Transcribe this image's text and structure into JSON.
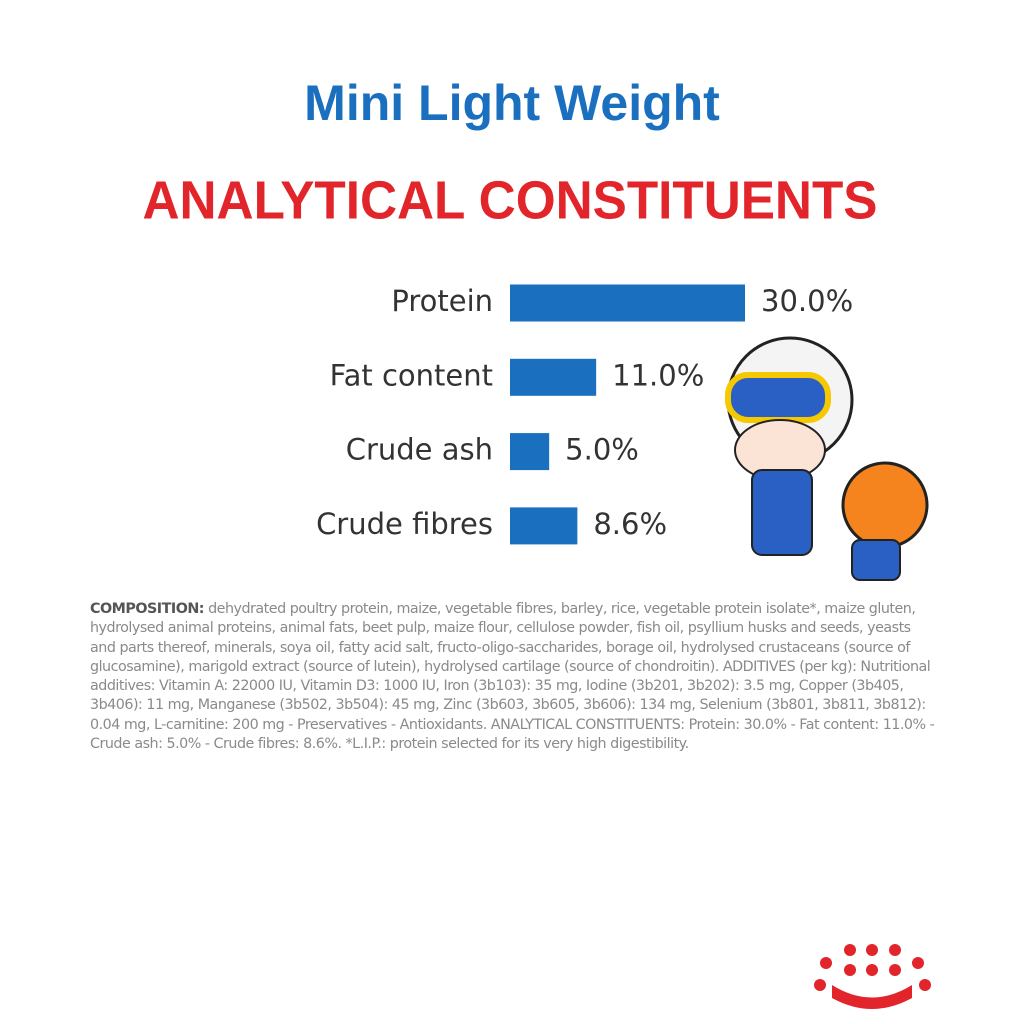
{
  "chart_data": {
    "type": "bar",
    "orientation": "horizontal",
    "title": "Mini Light Weight",
    "subtitle": "ANALYTICAL CONSTITUENTS",
    "categories": [
      "Protein",
      "Fat content",
      "Crude ash",
      "Crude fibres"
    ],
    "values": [
      30.0,
      11.0,
      5.0,
      8.6
    ],
    "value_labels": [
      "30.0%",
      "11.0%",
      "5.0%",
      "8.6%"
    ],
    "color": "#1b6fbf"
  },
  "composition": {
    "label": "COMPOSITION:",
    "text": "dehydrated poultry protein, maize, vegetable fibres, barley, rice, vegetable protein isolate*, maize gluten, hydrolysed animal proteins, animal fats, beet pulp, maize flour, cellulose powder, fish oil, psyllium husks and seeds, yeasts and parts thereof, minerals, soya oil, fatty acid salt, fructo-oligo-saccharides, borage oil, hydrolysed crustaceans (source of glucosamine), marigold extract (source of lutein), hydrolysed cartilage (source of chondroitin). ADDITIVES (per kg): Nutritional additives: Vitamin A: 22000 IU, Vitamin D3: 1000 IU, Iron (3b103): 35 mg, Iodine (3b201, 3b202): 3.5 mg, Copper (3b405, 3b406): 11 mg, Manganese (3b502, 3b504): 45 mg, Zinc (3b603, 3b605, 3b606): 134 mg, Selenium (3b801, 3b811, 3b812): 0.04 mg, L-carnitine: 200 mg - Preservatives - Antioxidants. ANALYTICAL CONSTITUENTS: Protein: 30.0% - Fat content: 11.0% - Crude ash: 5.0% - Crude fibres: 8.6%. *L.I.P.: protein selected for its very high digestibility."
  }
}
